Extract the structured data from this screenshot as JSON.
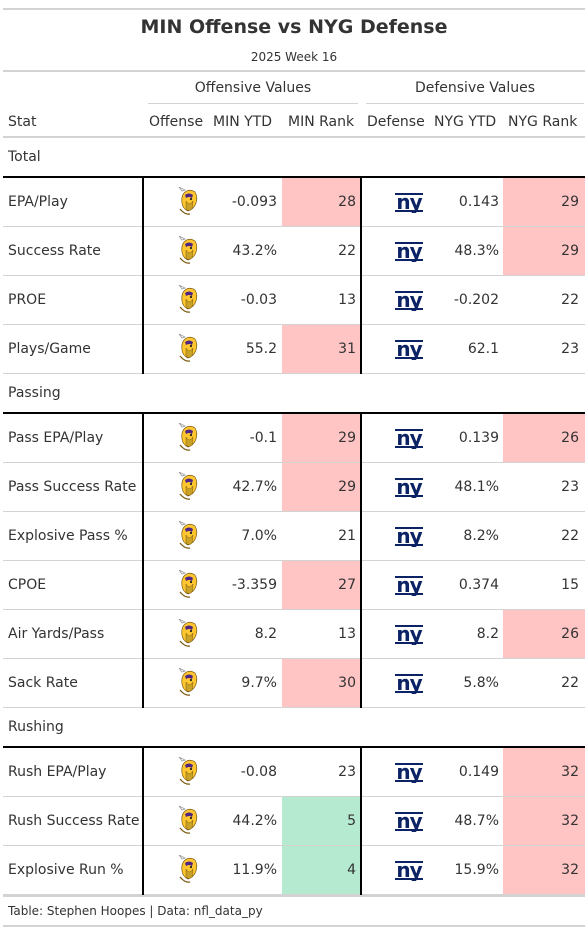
{
  "title": "MIN Offense vs NYG Defense",
  "subtitle": "2025 Week 16",
  "spanners": {
    "offense": "Offensive Values",
    "defense": "Defensive Values"
  },
  "columns": {
    "stat": "Stat",
    "offense": "Offense",
    "min_ytd": "MIN YTD",
    "min_rank": "MIN Rank",
    "defense": "Defense",
    "nyg_ytd": "NYG YTD",
    "nyg_rank": "NYG Rank"
  },
  "colors": {
    "bad": "#ffc4c4",
    "good": "#b5ead0",
    "vikings_purple": "#4f2683",
    "vikings_gold": "#ffc62f",
    "giants_blue": "#0b2265"
  },
  "icons": {
    "offense": "vikings-logo-icon",
    "defense": "giants-logo-icon"
  },
  "groups": [
    {
      "label": "Total",
      "rows": [
        {
          "stat": "EPA/Play",
          "min_ytd": "-0.093",
          "min_rank": "28",
          "min_rank_color": "bad",
          "nyg_ytd": "0.143",
          "nyg_rank": "29",
          "nyg_rank_color": "bad"
        },
        {
          "stat": "Success Rate",
          "min_ytd": "43.2%",
          "min_rank": "22",
          "min_rank_color": "",
          "nyg_ytd": "48.3%",
          "nyg_rank": "29",
          "nyg_rank_color": "bad"
        },
        {
          "stat": "PROE",
          "min_ytd": "-0.03",
          "min_rank": "13",
          "min_rank_color": "",
          "nyg_ytd": "-0.202",
          "nyg_rank": "22",
          "nyg_rank_color": ""
        },
        {
          "stat": "Plays/Game",
          "min_ytd": "55.2",
          "min_rank": "31",
          "min_rank_color": "bad",
          "nyg_ytd": "62.1",
          "nyg_rank": "23",
          "nyg_rank_color": ""
        }
      ]
    },
    {
      "label": "Passing",
      "rows": [
        {
          "stat": "Pass EPA/Play",
          "min_ytd": "-0.1",
          "min_rank": "29",
          "min_rank_color": "bad",
          "nyg_ytd": "0.139",
          "nyg_rank": "26",
          "nyg_rank_color": "bad"
        },
        {
          "stat": "Pass Success Rate",
          "min_ytd": "42.7%",
          "min_rank": "29",
          "min_rank_color": "bad",
          "nyg_ytd": "48.1%",
          "nyg_rank": "23",
          "nyg_rank_color": ""
        },
        {
          "stat": "Explosive Pass %",
          "min_ytd": "7.0%",
          "min_rank": "21",
          "min_rank_color": "",
          "nyg_ytd": "8.2%",
          "nyg_rank": "22",
          "nyg_rank_color": ""
        },
        {
          "stat": "CPOE",
          "min_ytd": "-3.359",
          "min_rank": "27",
          "min_rank_color": "bad",
          "nyg_ytd": "0.374",
          "nyg_rank": "15",
          "nyg_rank_color": ""
        },
        {
          "stat": "Air Yards/Pass",
          "min_ytd": "8.2",
          "min_rank": "13",
          "min_rank_color": "",
          "nyg_ytd": "8.2",
          "nyg_rank": "26",
          "nyg_rank_color": "bad"
        },
        {
          "stat": "Sack Rate",
          "min_ytd": "9.7%",
          "min_rank": "30",
          "min_rank_color": "bad",
          "nyg_ytd": "5.8%",
          "nyg_rank": "22",
          "nyg_rank_color": ""
        }
      ]
    },
    {
      "label": "Rushing",
      "rows": [
        {
          "stat": "Rush EPA/Play",
          "min_ytd": "-0.08",
          "min_rank": "23",
          "min_rank_color": "",
          "nyg_ytd": "0.149",
          "nyg_rank": "32",
          "nyg_rank_color": "bad"
        },
        {
          "stat": "Rush Success Rate",
          "min_ytd": "44.2%",
          "min_rank": "5",
          "min_rank_color": "good",
          "nyg_ytd": "48.7%",
          "nyg_rank": "32",
          "nyg_rank_color": "bad"
        },
        {
          "stat": "Explosive Run %",
          "min_ytd": "11.9%",
          "min_rank": "4",
          "min_rank_color": "good",
          "nyg_ytd": "15.9%",
          "nyg_rank": "32",
          "nyg_rank_color": "bad"
        }
      ]
    }
  ],
  "footer": "Table: Stephen Hoopes | Data: nfl_data_py"
}
